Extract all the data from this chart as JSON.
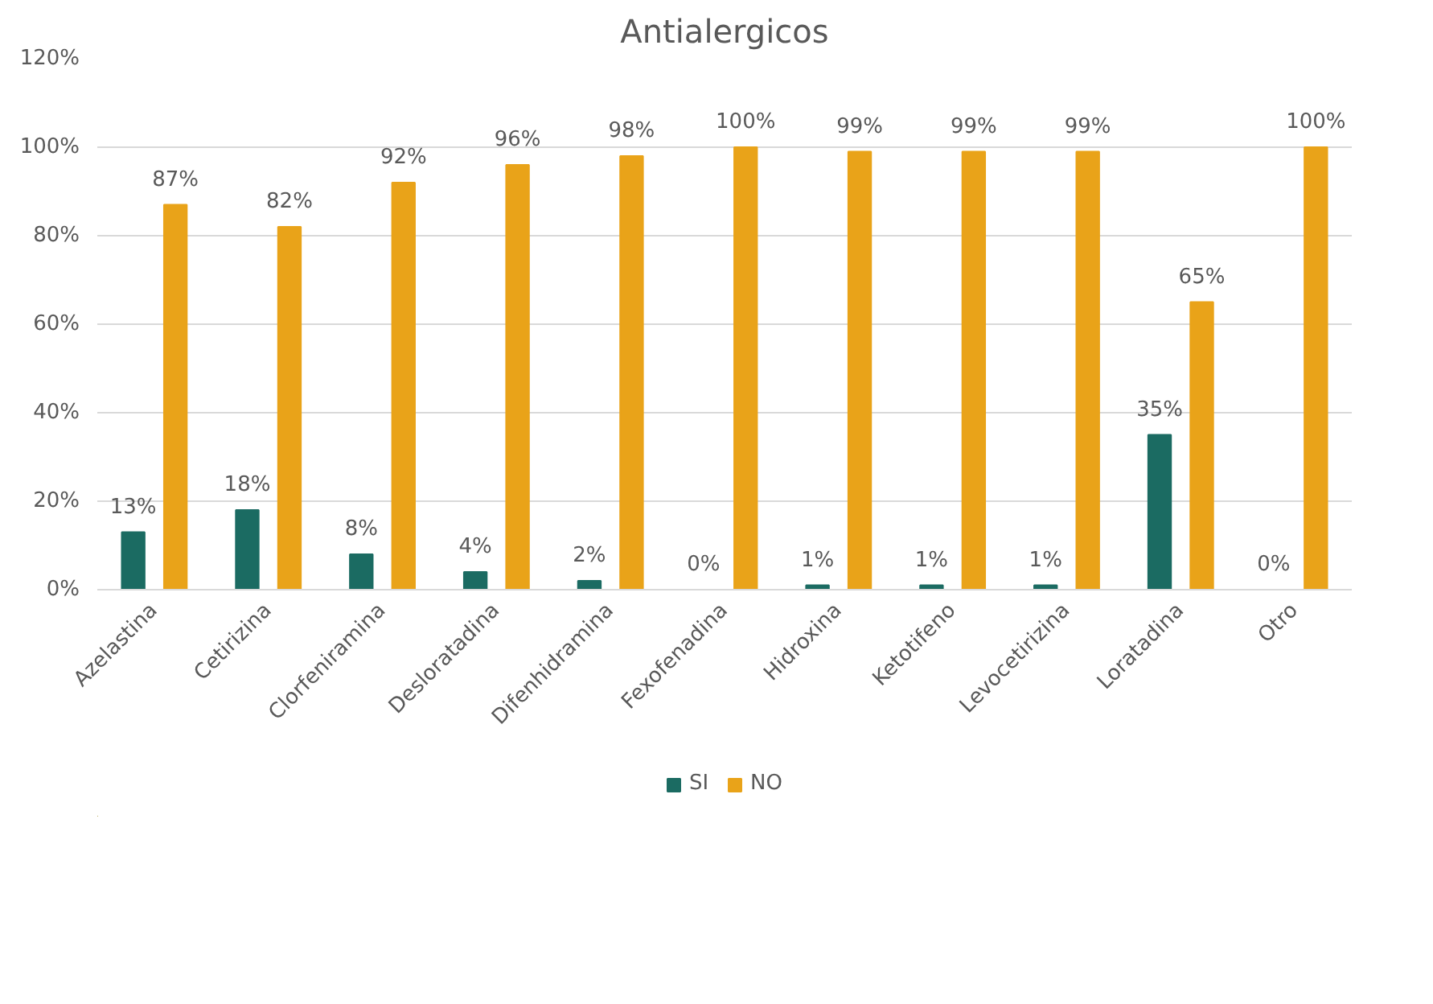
{
  "chart_data": {
    "type": "bar",
    "title": "Antialergicos",
    "categories": [
      "Azelastina",
      "Cetirizina",
      "Clorfeniramina",
      "Desloratadina",
      "Difenhidramina",
      "Fexofenadina",
      "Hidroxina",
      "Ketotifeno",
      "Levocetirizina",
      "Loratadina",
      "Otro"
    ],
    "series": [
      {
        "name": "SI",
        "color": "#1b6b62",
        "values": [
          13,
          18,
          8,
          4,
          2,
          0,
          1,
          1,
          1,
          35,
          0
        ],
        "value_labels": [
          "13%",
          "18%",
          "8%",
          "4%",
          "2%",
          "0%",
          "1%",
          "1%",
          "1%",
          "35%",
          "0%"
        ]
      },
      {
        "name": "NO",
        "color": "#e9a319",
        "values": [
          87,
          82,
          92,
          96,
          98,
          100,
          99,
          99,
          99,
          65,
          100
        ],
        "value_labels": [
          "87%",
          "82%",
          "92%",
          "96%",
          "98%",
          "100%",
          "99%",
          "99%",
          "99%",
          "65%",
          "100%"
        ]
      }
    ],
    "ylim": [
      0,
      120
    ],
    "yticks": [
      {
        "value": 0,
        "label": "0%"
      },
      {
        "value": 20,
        "label": "20%"
      },
      {
        "value": 40,
        "label": "40%"
      },
      {
        "value": 60,
        "label": "60%"
      },
      {
        "value": 80,
        "label": "80%"
      },
      {
        "value": 100,
        "label": "100%"
      },
      {
        "value": 120,
        "label": "120%"
      }
    ],
    "grid": "y",
    "legend": "bottom"
  }
}
